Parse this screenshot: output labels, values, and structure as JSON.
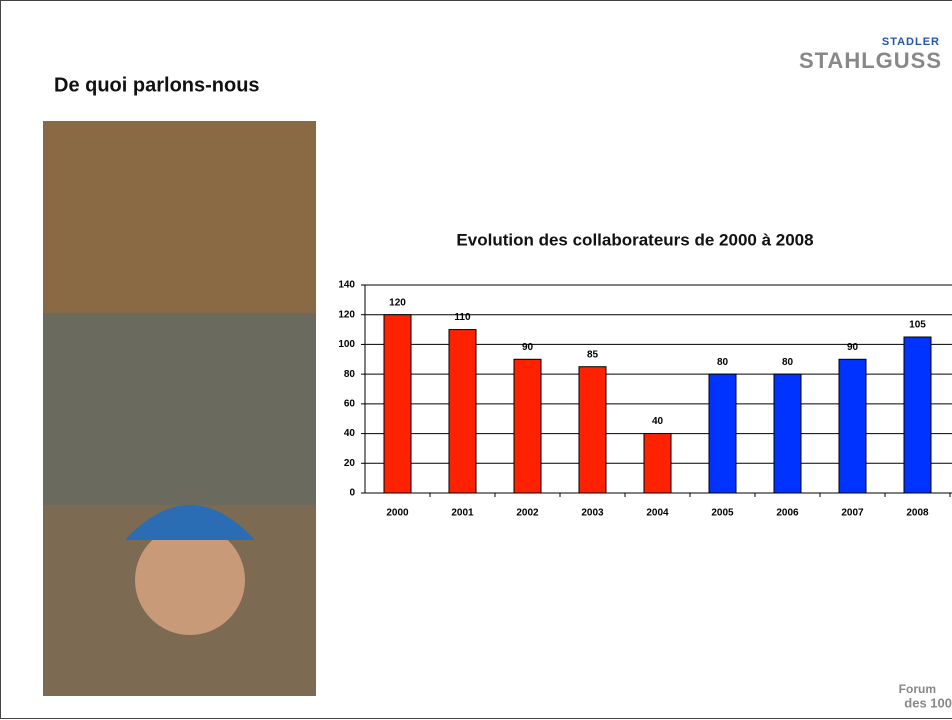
{
  "slide": {
    "title": "De quoi parlons-nous",
    "logo_top": "STADLER",
    "logo_main": "STAHLGUSS",
    "footer_logo_top": "Forum",
    "footer_logo_main": "des 100"
  },
  "chart_data": {
    "type": "bar",
    "title": "Evolution des collaborateurs de 2000 à 2008",
    "categories": [
      "2000",
      "2001",
      "2002",
      "2003",
      "2004",
      "2005",
      "2006",
      "2007",
      "2008"
    ],
    "values": [
      120,
      110,
      90,
      85,
      40,
      80,
      80,
      90,
      105
    ],
    "colors": [
      "#ff2200",
      "#ff2200",
      "#ff2200",
      "#ff2200",
      "#ff2200",
      "#0033ff",
      "#0033ff",
      "#0033ff",
      "#0033ff"
    ],
    "ylim": [
      0,
      140
    ],
    "yticks": [
      0,
      20,
      40,
      60,
      80,
      100,
      120,
      140
    ],
    "grid": true
  }
}
